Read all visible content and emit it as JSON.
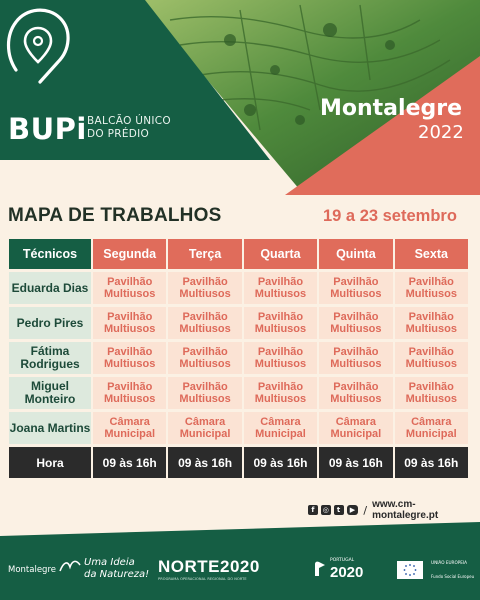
{
  "brand": {
    "name": "BUPi",
    "tagline_line1": "BALCÃO ÚNICO",
    "tagline_line2": "DO PRÉDIO"
  },
  "event": {
    "city": "Montalegre",
    "year": "2022"
  },
  "schedule": {
    "title": "MAPA DE TRABALHOS",
    "dates": "19 a 23 setembro",
    "header": {
      "first": "Técnicos",
      "days": [
        "Segunda",
        "Terça",
        "Quarta",
        "Quinta",
        "Sexta"
      ]
    },
    "rows": [
      {
        "name": "Eduarda Dias",
        "cells": [
          [
            "Pavilhão",
            "Multiusos"
          ],
          [
            "Pavilhão",
            "Multiusos"
          ],
          [
            "Pavilhão",
            "Multiusos"
          ],
          [
            "Pavilhão",
            "Multiusos"
          ],
          [
            "Pavilhão",
            "Multiusos"
          ]
        ]
      },
      {
        "name": "Pedro Pires",
        "cells": [
          [
            "Pavilhão",
            "Multiusos"
          ],
          [
            "Pavilhão",
            "Multiusos"
          ],
          [
            "Pavilhão",
            "Multiusos"
          ],
          [
            "Pavilhão",
            "Multiusos"
          ],
          [
            "Pavilhão",
            "Multiusos"
          ]
        ]
      },
      {
        "name": "Fátima Rodrigues",
        "cells": [
          [
            "Pavilhão",
            "Multiusos"
          ],
          [
            "Pavilhão",
            "Multiusos"
          ],
          [
            "Pavilhão",
            "Multiusos"
          ],
          [
            "Pavilhão",
            "Multiusos"
          ],
          [
            "Pavilhão",
            "Multiusos"
          ]
        ]
      },
      {
        "name": "Miguel Monteiro",
        "cells": [
          [
            "Pavilhão",
            "Multiusos"
          ],
          [
            "Pavilhão",
            "Multiusos"
          ],
          [
            "Pavilhão",
            "Multiusos"
          ],
          [
            "Pavilhão",
            "Multiusos"
          ],
          [
            "Pavilhão",
            "Multiusos"
          ]
        ]
      },
      {
        "name": "Joana Martins",
        "cells": [
          [
            "Câmara",
            "Municipal"
          ],
          [
            "Câmara",
            "Municipal"
          ],
          [
            "Câmara",
            "Municipal"
          ],
          [
            "Câmara",
            "Municipal"
          ],
          [
            "Câmara",
            "Municipal"
          ]
        ]
      }
    ],
    "hours": {
      "label": "Hora",
      "values": [
        "09 às 16h",
        "09 às 16h",
        "09 às 16h",
        "09 às 16h",
        "09 às 16h"
      ]
    }
  },
  "social": {
    "icons": [
      "facebook-icon",
      "instagram-icon",
      "twitter-icon",
      "youtube-icon"
    ],
    "separator": "/",
    "url": "www.cm-montalegre.pt"
  },
  "footer": {
    "municipality": "Montalegre",
    "slogan_line1": "Uma Ideia",
    "slogan_line2": "da Natureza!",
    "program": "NORTE2020",
    "program_sub": "PROGRAMA OPERACIONAL REGIONAL DO NORTE",
    "portugal_label": "PORTUGAL",
    "portugal_year": "2020",
    "eu_union": "UNIÃO EUROPEIA",
    "eu_fund": "Fundo Social Europeu"
  },
  "colors": {
    "green": "#155e44",
    "coral": "#e06c5b",
    "cream": "#fbf1e4",
    "dark": "#2b2b2b",
    "name_bg": "#dde9dd",
    "cell_bg": "#fbe3d4"
  }
}
